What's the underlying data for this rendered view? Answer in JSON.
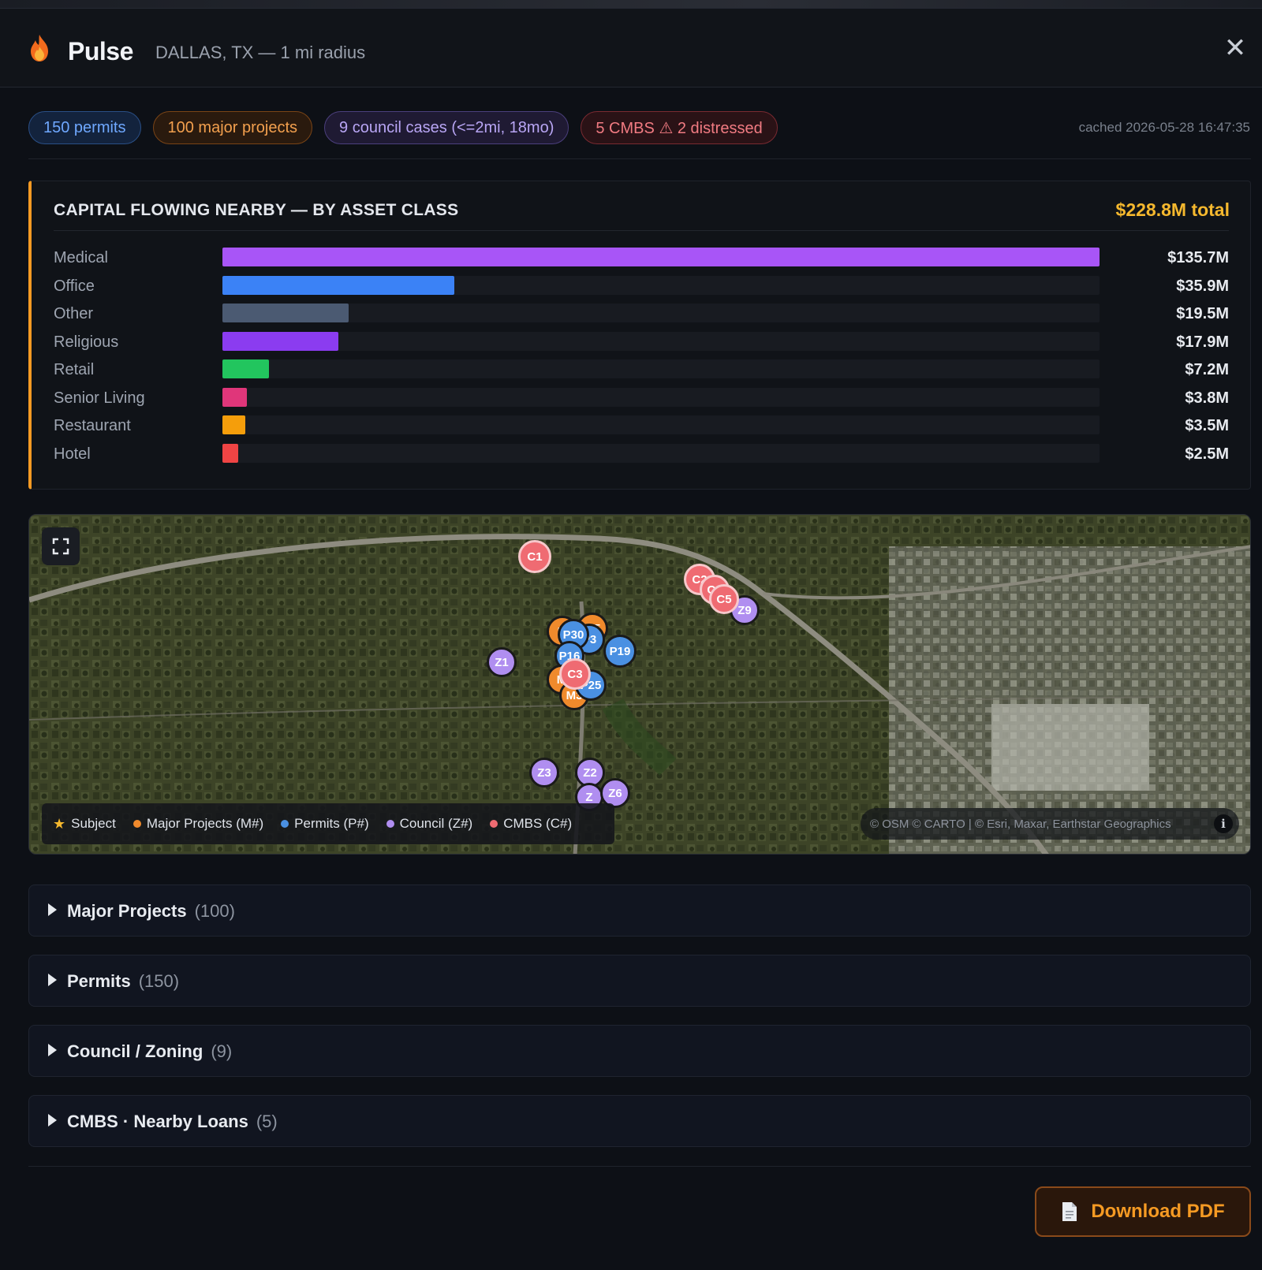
{
  "header": {
    "title": "Pulse",
    "subtitle": "DALLAS, TX — 1 mi radius",
    "close_label": "✕"
  },
  "chips": [
    {
      "label": "150 permits",
      "color": "blue"
    },
    {
      "label": "100 major projects",
      "color": "orange"
    },
    {
      "label": "9 council cases (<=2mi, 18mo)",
      "color": "purple"
    },
    {
      "label": "5 CMBS ⚠ 2 distressed",
      "color": "red"
    }
  ],
  "cached": "cached 2026-05-28 16:47:35",
  "capital": {
    "title": "CAPITAL FLOWING NEARBY — BY ASSET CLASS",
    "total": "$228.8M total",
    "chart_data": {
      "type": "bar",
      "categories": [
        "Medical",
        "Office",
        "Other",
        "Religious",
        "Retail",
        "Senior Living",
        "Restaurant",
        "Hotel"
      ],
      "values": [
        135.7,
        35.9,
        19.5,
        17.9,
        7.2,
        3.8,
        3.5,
        2.5
      ],
      "value_labels": [
        "$135.7M",
        "$35.9M",
        "$19.5M",
        "$17.9M",
        "$7.2M",
        "$3.8M",
        "$3.5M",
        "$2.5M"
      ],
      "colors": [
        "#a855f7",
        "#3b82f6",
        "#4b5a72",
        "#8b3cf0",
        "#22c55e",
        "#e0367a",
        "#f59e0b",
        "#ef4444"
      ],
      "max": 135.7
    }
  },
  "map": {
    "legend": [
      {
        "label": "Subject",
        "color": "#f5b82e",
        "symbol": "star"
      },
      {
        "label": "Major Projects (M#)",
        "color": "#f08a2c",
        "symbol": "dot"
      },
      {
        "label": "Permits (P#)",
        "color": "#4a90e2",
        "symbol": "dot"
      },
      {
        "label": "Council (Z#)",
        "color": "#b08ef0",
        "symbol": "dot"
      },
      {
        "label": "CMBS (C#)",
        "color": "#ef6b72",
        "symbol": "dot"
      }
    ],
    "attribution": "© OSM © CARTO | © Esri, Maxar, Earthstar Geographics",
    "info_label": "i",
    "expand_icon": "expand-icon"
  },
  "sections": [
    {
      "label": "Major Projects",
      "count": "(100)"
    },
    {
      "label": "Permits",
      "count": "(150)"
    },
    {
      "label": "Council / Zoning",
      "count": "(9)"
    },
    {
      "label": "CMBS · Nearby Loans",
      "count": "(5)"
    }
  ],
  "download": {
    "label": "Download PDF"
  }
}
